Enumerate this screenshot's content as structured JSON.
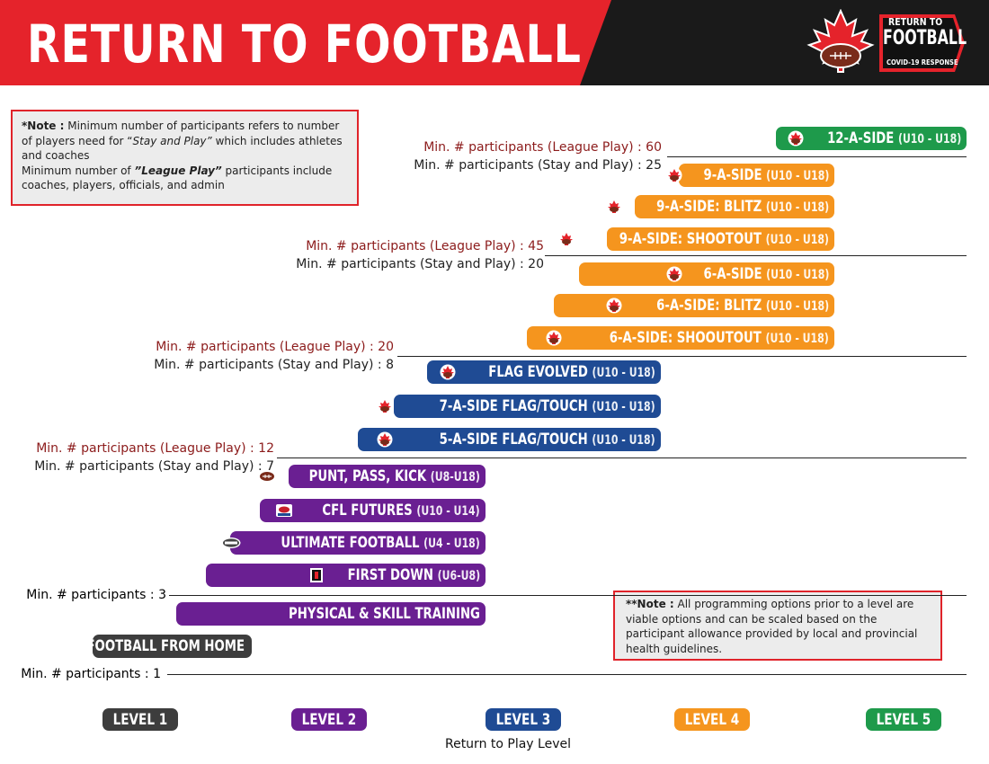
{
  "header": {
    "title": "RETURN TO FOOTBALL",
    "logo": {
      "line1": "RETURN TO",
      "line2": "FOOTBALL",
      "line3": "COVID-19 RESPONSE"
    }
  },
  "notes": {
    "note1": {
      "bold": "*Note :",
      "text_a": " Minimum number of participants refers to number of players need for “",
      "italic_a": "Stay and Play”",
      "text_b": " which includes athletes and coaches",
      "text_c": "Minimum number of ",
      "italic_b": "”League Play”",
      "text_d": " participants include coaches, players, officials, and admin"
    },
    "note2": {
      "bold": "**Note :",
      "text": " All programming options prior to a level are viable options and can be scaled based on the participant allowance provided by local and provincial health guidelines."
    }
  },
  "thresholds": [
    {
      "league": "Min. # participants (League Play) : 60",
      "stay": "Min. # participants (Stay and Play) : 25"
    },
    {
      "league": "Min. # participants (League Play) : 45",
      "stay": "Min. # participants (Stay and Play) : 20"
    },
    {
      "league": "Min. # participants (League Play) : 20",
      "stay": "Min. # participants (Stay and Play) : 8"
    },
    {
      "league": "Min. # participants (League Play) : 12",
      "stay": "Min. # participants (Stay and Play) : 7"
    },
    {
      "single": "Min. # participants : 3"
    },
    {
      "single": "Min. # participants : 1"
    }
  ],
  "programs": [
    {
      "name": "12-A-SIDE",
      "ages": "(U10 - U18)",
      "color": "#1e9a4b",
      "icon": "maple-leaf-icon"
    },
    {
      "name": "9-A-SIDE",
      "ages": "(U10 - U18)",
      "color": "#f5951e",
      "icon": "maple-leaf-icon"
    },
    {
      "name": "9-A-SIDE: BLITZ",
      "ages": "(U10 - U18)",
      "color": "#f5951e",
      "icon": "maple-leaf-icon"
    },
    {
      "name": "9-A-SIDE: SHOOTOUT",
      "ages": "(U10 - U18)",
      "color": "#f5951e",
      "icon": "maple-leaf-icon"
    },
    {
      "name": "6-A-SIDE",
      "ages": "(U10 - U18)",
      "color": "#f5951e",
      "icon": "maple-leaf-icon"
    },
    {
      "name": "6-A-SIDE: BLITZ",
      "ages": "(U10 - U18)",
      "color": "#f5951e",
      "icon": "maple-leaf-icon"
    },
    {
      "name": "6-A-SIDE: SHOOUTOUT",
      "ages": "(U10 - U18)",
      "color": "#f5951e",
      "icon": "maple-leaf-icon"
    },
    {
      "name": "FLAG EVOLVED",
      "ages": "(U10 - U18)",
      "color": "#1f4b94",
      "icon": "maple-leaf-icon"
    },
    {
      "name": "7-A-SIDE FLAG/TOUCH",
      "ages": "(U10 - U18)",
      "color": "#1f4b94",
      "icon": "maple-leaf-icon"
    },
    {
      "name": "5-A-SIDE FLAG/TOUCH",
      "ages": "(U10 - U18)",
      "color": "#1f4b94",
      "icon": "maple-leaf-icon"
    },
    {
      "name": "PUNT, PASS, KICK",
      "ages": "(U8-U18)",
      "color": "#6a1f92",
      "icon": "football-icon"
    },
    {
      "name": "CFL FUTURES",
      "ages": "(U10 - U14)",
      "color": "#6a1f92",
      "icon": "cfl-futures-icon"
    },
    {
      "name": "ULTIMATE FOOTBALL",
      "ages": "(U4 - U18)",
      "color": "#6a1f92",
      "icon": "ultimate-icon"
    },
    {
      "name": "FIRST DOWN",
      "ages": "(U6-U8)",
      "color": "#6a1f92",
      "icon": "first-down-icon"
    },
    {
      "name": "PHYSICAL & SKILL TRAINING",
      "ages": "",
      "color": "#6a1f92",
      "icon": ""
    },
    {
      "name": "FOOTBALL FROM HOME",
      "ages": "",
      "color": "#3d3d3d",
      "icon": ""
    }
  ],
  "levels": [
    {
      "label": "LEVEL 1",
      "color": "#3d3d3d"
    },
    {
      "label": "LEVEL 2",
      "color": "#6a1f92"
    },
    {
      "label": "LEVEL 3",
      "color": "#1f4b94"
    },
    {
      "label": "LEVEL 4",
      "color": "#f5951e"
    },
    {
      "label": "LEVEL 5",
      "color": "#1e9a4b"
    }
  ],
  "xlabel": "Return to Play Level"
}
